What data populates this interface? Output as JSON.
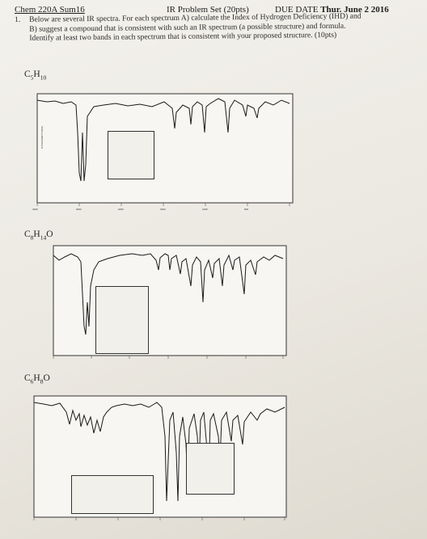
{
  "header": {
    "course": "Chem 220A Sum16",
    "title": "IR Problem Set (20pts)",
    "due_label": "DUE DATE",
    "due_date": "Thur. June 2 2016"
  },
  "question": {
    "number": "1.",
    "line1": "Below are several IR spectra. For each spectrum A) calculate the Index of Hydrogen Deficiency (IHD) and",
    "line2": "B) suggest a compound that is consistent with such an IR spectrum (a possible structure) and formula.",
    "line3": "Identify at least two bands in each spectrum that is consistent with your proposed structure. (10pts)"
  },
  "spectra": [
    {
      "formula_main": "C",
      "formula_sub1": "5",
      "formula_mid": "H",
      "formula_sub2": "10",
      "formula_tail": "",
      "formula_sub3": ""
    },
    {
      "formula_main": "C",
      "formula_sub1": "8",
      "formula_mid": "H",
      "formula_sub2": "14",
      "formula_tail": "O",
      "formula_sub3": ""
    },
    {
      "formula_main": "C",
      "formula_sub1": "6",
      "formula_mid": "H",
      "formula_sub2": "8",
      "formula_tail": "O",
      "formula_sub3": ""
    }
  ]
}
